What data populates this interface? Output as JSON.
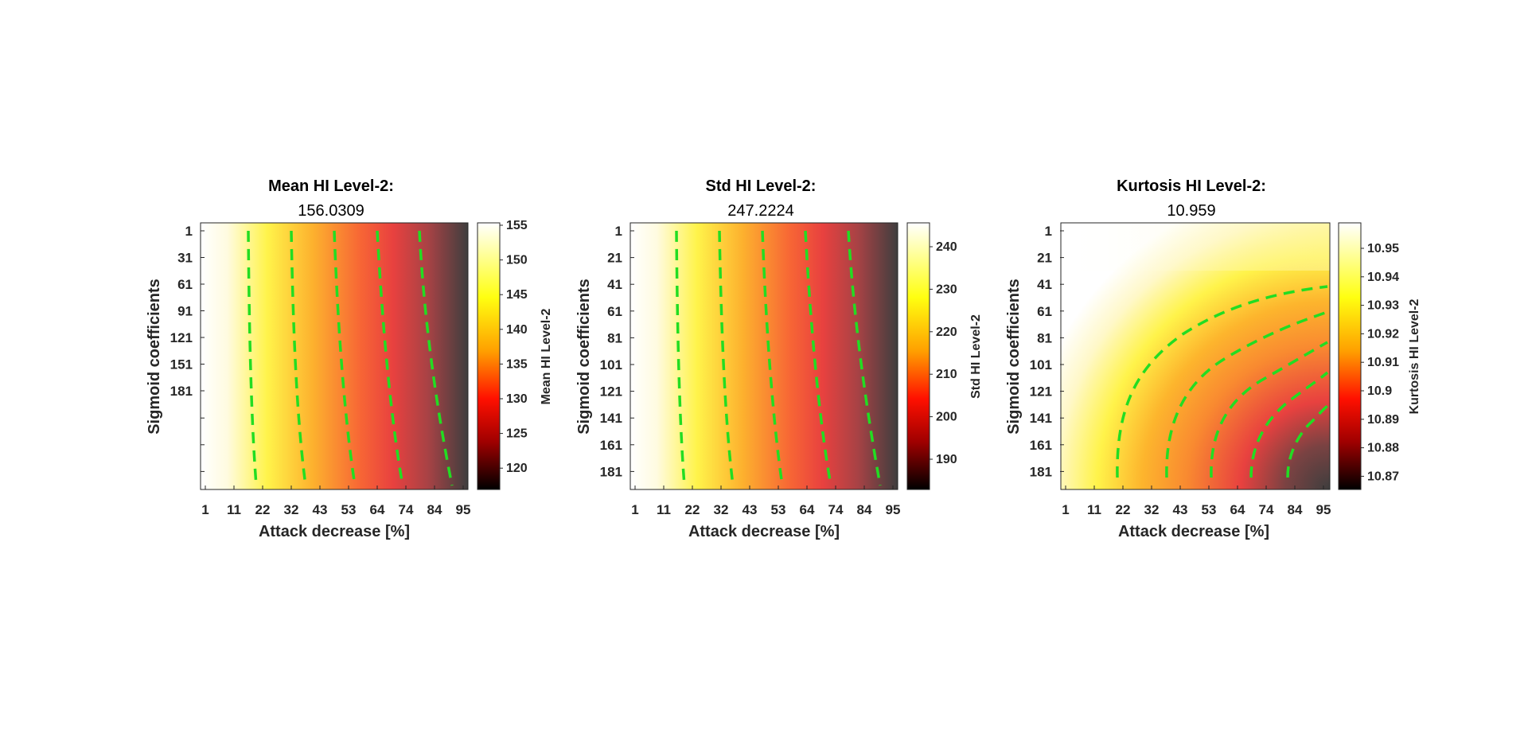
{
  "chart_data": [
    {
      "type": "heatmap",
      "title": "Mean HI Level-2:",
      "subtitle": "156.0309",
      "xlabel": "Attack decrease [%]",
      "ylabel": "Sigmoid coefficients",
      "colorbar_label": "Mean HI Level-2",
      "colormap": "hot (reversed)",
      "x_ticks": [
        "1",
        "11",
        "22",
        "32",
        "43",
        "53",
        "64",
        "74",
        "84",
        "95"
      ],
      "y_ticks": [
        "1",
        "31",
        "61",
        "91",
        "121",
        "151",
        "181"
      ],
      "colorbar_ticks": [
        "155",
        "150",
        "145",
        "140",
        "135",
        "130",
        "125",
        "120"
      ],
      "clim": [
        117,
        156
      ],
      "contour_color": "#22dd22",
      "contour_style": "dashed"
    },
    {
      "type": "heatmap",
      "title": "Std HI Level-2:",
      "subtitle": "247.2224",
      "xlabel": "Attack decrease [%]",
      "ylabel": "Sigmoid coefficients",
      "colorbar_label": "Std HI Level-2",
      "colormap": "hot (reversed)",
      "x_ticks": [
        "1",
        "11",
        "22",
        "32",
        "43",
        "53",
        "64",
        "74",
        "84",
        "95"
      ],
      "y_ticks": [
        "1",
        "21",
        "41",
        "61",
        "81",
        "101",
        "121",
        "141",
        "161",
        "181"
      ],
      "colorbar_ticks": [
        "240",
        "230",
        "220",
        "210",
        "200",
        "190"
      ],
      "clim": [
        183,
        247
      ],
      "contour_color": "#22dd22",
      "contour_style": "dashed"
    },
    {
      "type": "heatmap",
      "title": "Kurtosis HI Level-2:",
      "subtitle": "10.959",
      "xlabel": "Attack decrease [%]",
      "ylabel": "Sigmoid coefficients",
      "colorbar_label": "Kurtosis HI Level-2",
      "colormap": "hot (reversed)",
      "x_ticks": [
        "1",
        "11",
        "22",
        "32",
        "43",
        "53",
        "64",
        "74",
        "84",
        "95"
      ],
      "y_ticks": [
        "1",
        "21",
        "41",
        "61",
        "81",
        "101",
        "121",
        "141",
        "161",
        "181"
      ],
      "colorbar_ticks": [
        "10.95",
        "10.94",
        "10.93",
        "10.92",
        "10.91",
        "10.9",
        "10.89",
        "10.88",
        "10.87"
      ],
      "clim": [
        10.866,
        10.959
      ],
      "contour_color": "#22dd22",
      "contour_style": "dashed"
    }
  ]
}
